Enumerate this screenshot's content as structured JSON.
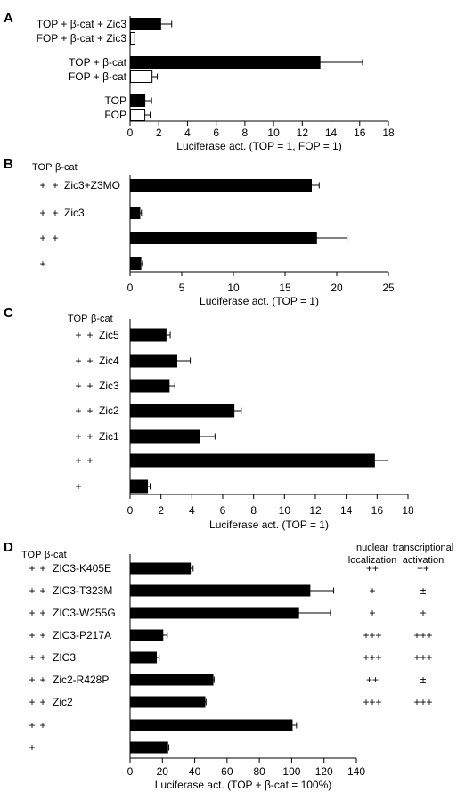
{
  "chart_data": [
    {
      "panel": "A",
      "type": "bar",
      "orientation": "horizontal",
      "xlabel": "Luciferase act. (TOP = 1, FOP = 1)",
      "xlim": [
        0,
        18
      ],
      "xticks": [
        0,
        2,
        4,
        6,
        8,
        10,
        12,
        14,
        16,
        18
      ],
      "categories": [
        "TOP + β-cat + Zic3",
        "FOP + β-cat + Zic3",
        "TOP + β-cat",
        "FOP + β-cat",
        "TOP",
        "FOP"
      ],
      "values": [
        2.1,
        0.3,
        13.2,
        1.5,
        1.0,
        1.0
      ],
      "errors": [
        0.8,
        0.0,
        3.0,
        0.4,
        0.5,
        0.4
      ],
      "fills": [
        "black",
        "white",
        "black",
        "white",
        "black",
        "white"
      ]
    },
    {
      "panel": "B",
      "type": "bar",
      "orientation": "horizontal",
      "header": [
        "TOP",
        "β-cat"
      ],
      "xlabel": "Luciferase act. (TOP = 1)",
      "xlim": [
        0,
        25
      ],
      "xticks": [
        0,
        5,
        10,
        15,
        20,
        25
      ],
      "rows": [
        {
          "marks": [
            "+",
            "+"
          ],
          "label": "Zic3+Z3MO",
          "value": 17.5,
          "error": 0.8
        },
        {
          "marks": [
            "+",
            "+"
          ],
          "label": "Zic3",
          "value": 0.9,
          "error": 0.2
        },
        {
          "marks": [
            "+",
            "+"
          ],
          "label": "",
          "value": 18.0,
          "error": 3.0
        },
        {
          "marks": [
            "+",
            ""
          ],
          "label": "",
          "value": 1.0,
          "error": 0.2
        }
      ]
    },
    {
      "panel": "C",
      "type": "bar",
      "orientation": "horizontal",
      "header": [
        "TOP",
        "β-cat"
      ],
      "xlabel": "Luciferase act. (TOP = 1)",
      "xlim": [
        0,
        18
      ],
      "xticks": [
        0,
        2,
        4,
        6,
        8,
        10,
        12,
        14,
        16,
        18
      ],
      "rows": [
        {
          "marks": [
            "+",
            "+"
          ],
          "label": "Zic5",
          "value": 2.3,
          "error": 0.3
        },
        {
          "marks": [
            "+",
            "+"
          ],
          "label": "Zic4",
          "value": 3.0,
          "error": 0.9
        },
        {
          "marks": [
            "+",
            "+"
          ],
          "label": "Zic3",
          "value": 2.5,
          "error": 0.4
        },
        {
          "marks": [
            "+",
            "+"
          ],
          "label": "Zic2",
          "value": 6.7,
          "error": 0.5
        },
        {
          "marks": [
            "+",
            "+"
          ],
          "label": "Zic1",
          "value": 4.5,
          "error": 1.0
        },
        {
          "marks": [
            "+",
            "+"
          ],
          "label": "",
          "value": 15.8,
          "error": 0.9
        },
        {
          "marks": [
            "+",
            ""
          ],
          "label": "",
          "value": 1.1,
          "error": 0.2
        }
      ]
    },
    {
      "panel": "D",
      "type": "bar",
      "orientation": "horizontal",
      "header": [
        "TOP",
        "β-cat"
      ],
      "extra_columns": [
        [
          "nuclear",
          "localization"
        ],
        [
          "transcriptional",
          "activation"
        ]
      ],
      "xlabel": "Luciferase act. (TOP + β-cat = 100%)",
      "xlim": [
        0,
        140
      ],
      "xticks": [
        0,
        20,
        40,
        60,
        80,
        100,
        120,
        140
      ],
      "rows": [
        {
          "marks": [
            "+",
            "+"
          ],
          "label": "ZIC3-K405E",
          "value": 37,
          "error": 2,
          "nuclear": "++",
          "activation": "++"
        },
        {
          "marks": [
            "+",
            "+"
          ],
          "label": "ZIC3-T323M",
          "value": 111,
          "error": 15,
          "nuclear": "+",
          "activation": "±"
        },
        {
          "marks": [
            "+",
            "+"
          ],
          "label": "ZIC3-W255G",
          "value": 104,
          "error": 20,
          "nuclear": "+",
          "activation": "+"
        },
        {
          "marks": [
            "+",
            "+"
          ],
          "label": "ZIC3-P217A",
          "value": 20,
          "error": 3,
          "nuclear": "+++",
          "activation": "+++"
        },
        {
          "marks": [
            "+",
            "+"
          ],
          "label": "ZIC3",
          "value": 16,
          "error": 2,
          "nuclear": "+++",
          "activation": "+++"
        },
        {
          "marks": [
            "+",
            "+"
          ],
          "label": "Zic2-R428P",
          "value": 51,
          "error": 1,
          "nuclear": "++",
          "activation": "±"
        },
        {
          "marks": [
            "+",
            "+"
          ],
          "label": "Zic2",
          "value": 46,
          "error": 1,
          "nuclear": "+++",
          "activation": "+++"
        },
        {
          "marks": [
            "+",
            "+"
          ],
          "label": "",
          "value": 100,
          "error": 3,
          "nuclear": "",
          "activation": ""
        },
        {
          "marks": [
            "+",
            ""
          ],
          "label": "",
          "value": 23,
          "error": 1,
          "nuclear": "",
          "activation": ""
        }
      ]
    }
  ]
}
